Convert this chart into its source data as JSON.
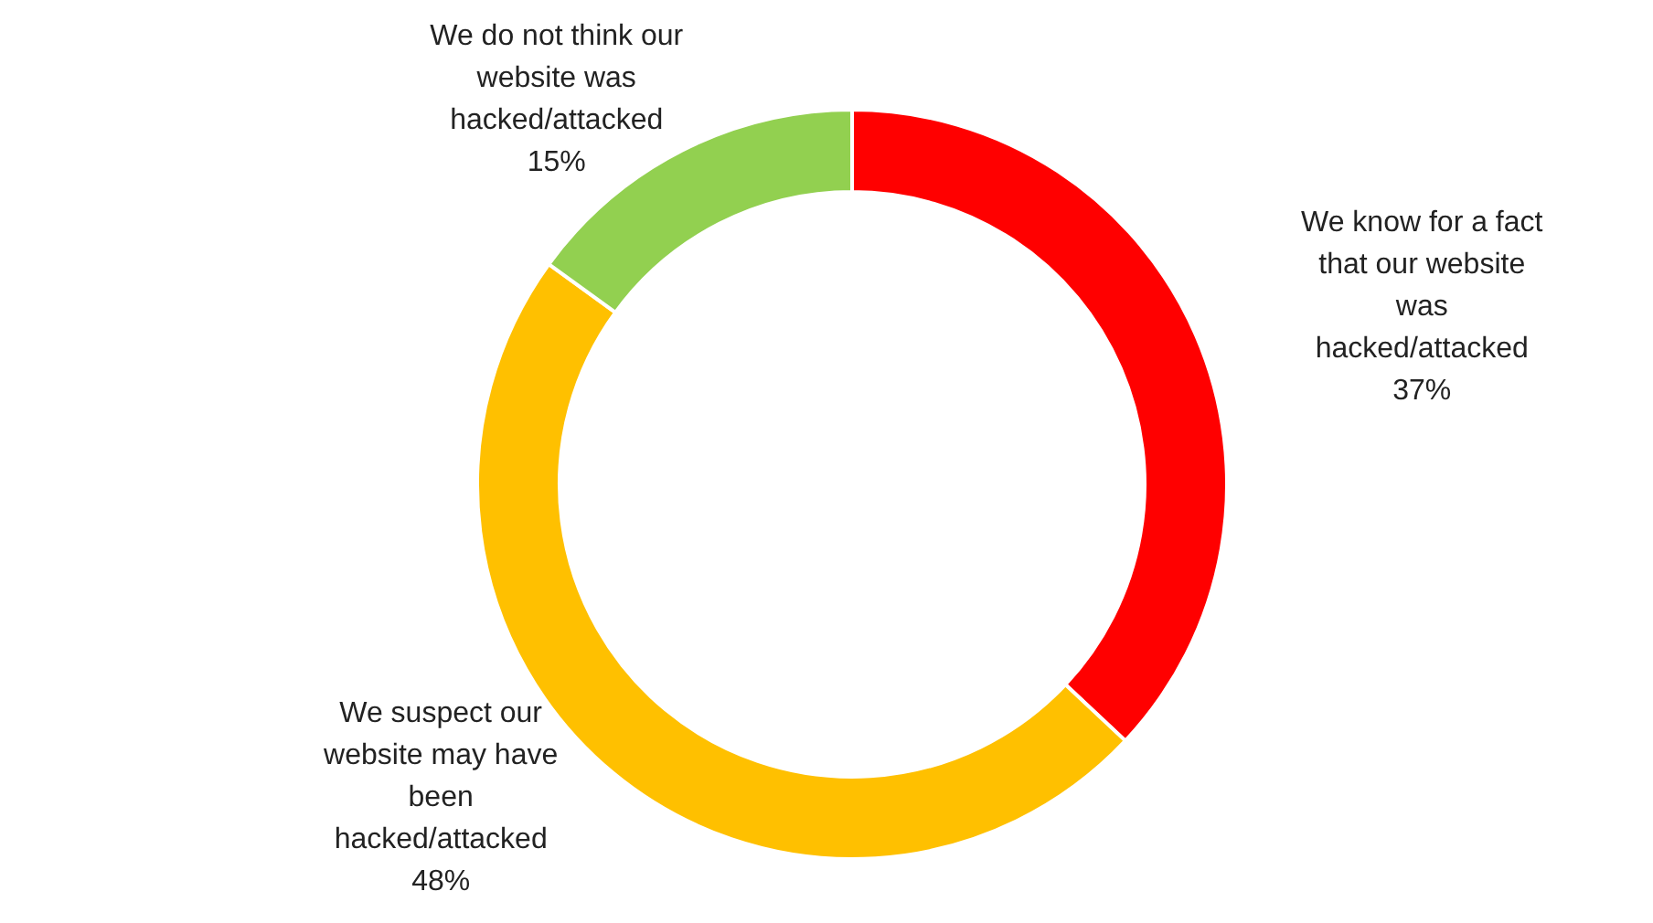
{
  "chart_data": {
    "type": "donut",
    "categories": [
      "We know for a fact that our website was hacked/attacked",
      "We suspect our website may have been hacked/attacked",
      "We do not think our website was hacked/attacked"
    ],
    "values": [
      37,
      48,
      15
    ],
    "colors": [
      "#ff0000",
      "#ffc000",
      "#92d050"
    ],
    "value_labels": [
      "37%",
      "48%",
      "15%"
    ],
    "legend": false
  }
}
